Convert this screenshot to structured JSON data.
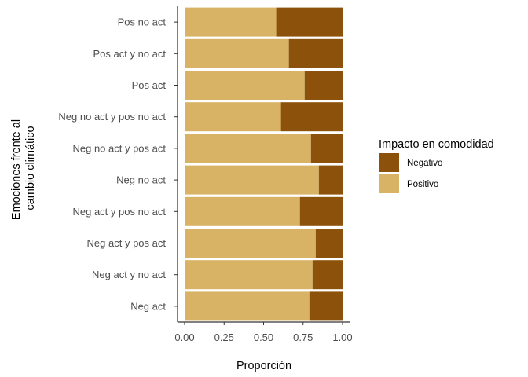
{
  "chart_data": {
    "type": "bar",
    "orientation": "horizontal",
    "stacked": true,
    "categories": [
      "Pos no act",
      "Pos act y no act",
      "Pos act",
      "Neg no act y pos no act",
      "Neg no act y pos act",
      "Neg no act",
      "Neg act y pos no act",
      "Neg act y pos act",
      "Neg act y no act",
      "Neg act"
    ],
    "series": [
      {
        "name": "Positivo",
        "color": "#D8B365",
        "values": [
          0.58,
          0.66,
          0.76,
          0.61,
          0.8,
          0.85,
          0.73,
          0.83,
          0.81,
          0.79
        ]
      },
      {
        "name": "Negativo",
        "color": "#8C510A",
        "values": [
          0.42,
          0.34,
          0.24,
          0.39,
          0.2,
          0.15,
          0.27,
          0.17,
          0.19,
          0.21
        ]
      }
    ],
    "xlabel": "Proporción",
    "ylabel": [
      "Emociones frente al",
      "cambio climático"
    ],
    "xlim": [
      0,
      1
    ],
    "xticks": [
      "0.00",
      "0.25",
      "0.50",
      "0.75",
      "1.00"
    ],
    "grid": false,
    "legend": {
      "title": "Impacto en comodidad",
      "position": "right",
      "entries": [
        {
          "label": "Negativo",
          "color": "#8C510A"
        },
        {
          "label": "Positivo",
          "color": "#D8B365"
        }
      ]
    }
  }
}
